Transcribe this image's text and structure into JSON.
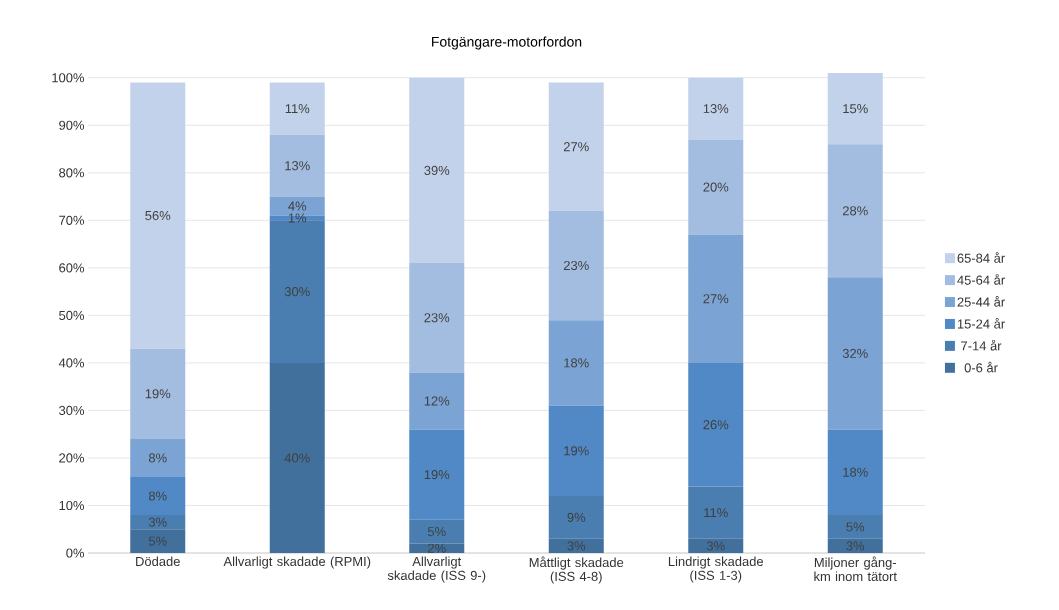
{
  "chart_data": {
    "type": "bar",
    "stacked": true,
    "title": "Fotgängare-motorfordon",
    "categories": [
      "Dödade",
      "Allvarligt skadade (RPMI)",
      "Allvarligt skadade (ISS 9-)",
      "Måttligt skadade (ISS 4-8)",
      "Lindrigt skadade (ISS 1-3)",
      "Miljoner gång-km inom tätort"
    ],
    "series": [
      {
        "name": "0-6 år",
        "color": "#41709c",
        "values": [
          5,
          40,
          2,
          3,
          3,
          3
        ],
        "value_labels": [
          "5%",
          "40%",
          "2%",
          "3%",
          "3%",
          "3%"
        ]
      },
      {
        "name": "7-14 år",
        "color": "#4a7db0",
        "values": [
          3,
          30,
          5,
          9,
          11,
          5
        ],
        "value_labels": [
          "3%",
          "30%",
          "5%",
          "9%",
          "11%",
          "5%"
        ]
      },
      {
        "name": "15-24 år",
        "color": "#5089c6",
        "values": [
          8,
          1,
          19,
          19,
          26,
          18
        ],
        "value_labels": [
          "8%",
          "1%",
          "19%",
          "19%",
          "26%",
          "18%"
        ]
      },
      {
        "name": "25-44 år",
        "color": "#7ba3d3",
        "values": [
          8,
          4,
          12,
          18,
          27,
          32
        ],
        "value_labels": [
          "8%",
          "4%",
          "12%",
          "18%",
          "27%",
          "32%"
        ]
      },
      {
        "name": "45-64 år",
        "color": "#a3bde0",
        "values": [
          19,
          13,
          23,
          23,
          20,
          28
        ],
        "value_labels": [
          "19%",
          "13%",
          "23%",
          "23%",
          "20%",
          "28%"
        ]
      },
      {
        "name": "65-84 år",
        "color": "#c2d2ea",
        "values": [
          56,
          11,
          39,
          27,
          13,
          15
        ],
        "value_labels": [
          "56%",
          "11%",
          "39%",
          "27%",
          "13%",
          "15%"
        ]
      }
    ],
    "ylim": [
      0,
      101
    ],
    "yticks": [
      {
        "value": 0,
        "label": "0%"
      },
      {
        "value": 10,
        "label": "10%"
      },
      {
        "value": 20,
        "label": "20%"
      },
      {
        "value": 30,
        "label": "30%"
      },
      {
        "value": 40,
        "label": "40%"
      },
      {
        "value": 50,
        "label": "50%"
      },
      {
        "value": 60,
        "label": "60%"
      },
      {
        "value": 70,
        "label": "70%"
      },
      {
        "value": 80,
        "label": "80%"
      },
      {
        "value": 90,
        "label": "90%"
      },
      {
        "value": 100,
        "label": "100%"
      }
    ],
    "grid": "y",
    "legend": "right"
  }
}
